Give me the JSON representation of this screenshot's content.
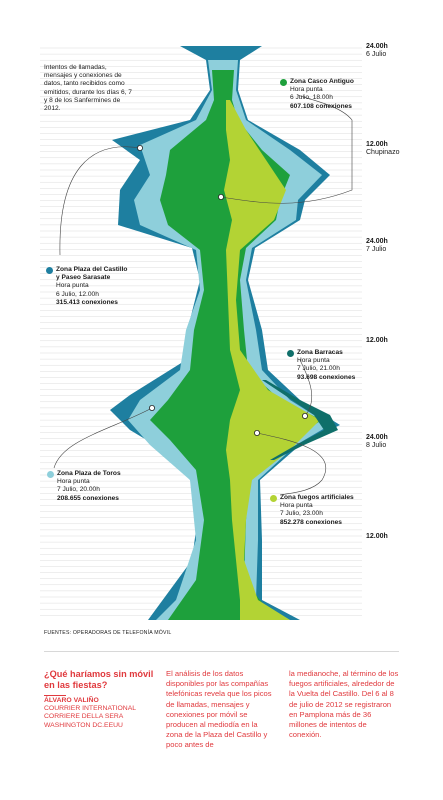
{
  "chart_data": {
    "type": "area",
    "title": "",
    "xlabel": "",
    "ylabel": "",
    "time_axis": [
      "24.00h",
      "12.00h",
      "24.00h",
      "12.00h",
      "24.00h",
      "12.00h"
    ],
    "time_labels": [
      {
        "time": "24.00h",
        "day": "6 Julio"
      },
      {
        "time": "12.00h",
        "day": "Chupinazo"
      },
      {
        "time": "24.00h",
        "day": "7 Julio"
      },
      {
        "time": "12.00h",
        "day": ""
      },
      {
        "time": "24.00h",
        "day": "8 Julio"
      },
      {
        "time": "12.00h",
        "day": ""
      }
    ],
    "series": [
      {
        "name": "Zona Plaza del Castillo y Paseo Sarasate",
        "color": "#1e7fa0"
      },
      {
        "name": "Zona Plaza de Toros",
        "color": "#8ecfdb"
      },
      {
        "name": "Zona Casco Antiguo",
        "color": "#1ea03c"
      },
      {
        "name": "Zona fuegos artificiales",
        "color": "#b3d334"
      },
      {
        "name": "Zona Barracas",
        "color": "#0f6f6a"
      }
    ]
  },
  "intro": "Intentos de llamadas, mensajes y conexiones de datos, tanto recibidos como emitidos, durante los días 6, 7 y 8 de los Sanfermines de 2012.",
  "zones": {
    "casco": {
      "name": "Zona Casco Antiguo",
      "label": "Hora punta",
      "when": "6 Julio, 18.00h",
      "value": "607.108 conexiones",
      "color": "#1ea03c"
    },
    "castillo": {
      "name_1": "Zona Plaza del Castillo",
      "name_2": "y Paseo Sarasate",
      "label": "Hora punta",
      "when": "6 Julio, 12.00h",
      "value": "315.413 conexiones",
      "color": "#1e7fa0"
    },
    "barracas": {
      "name": "Zona Barracas",
      "label": "Hora punta",
      "when": "7 Julio, 21.00h",
      "value": "93.698 conexiones",
      "color": "#0f6f6a"
    },
    "toros": {
      "name": "Zona Plaza de Toros",
      "label": "Hora punta",
      "when": "7 Julio, 20.00h",
      "value": "208.655 conexiones",
      "color": "#8ecfdb"
    },
    "fuegos": {
      "name": "Zona fuegos artificiales",
      "label": "Hora punta",
      "when": "7 Julio, 23.00h",
      "value": "852.278 conexiones",
      "color": "#b3d334"
    }
  },
  "source": "FUENTES: OPERADORAS DE TELEFONÍA MÓVIL",
  "article": {
    "title": "¿Qué haríamos sin móvil en las fiestas?",
    "author": "ÁLVARO VALIÑO",
    "affiliation_1": "COURRIER INTERNATIONAL",
    "affiliation_2": "CORRIERE DELLA SERA",
    "affiliation_3": "WASHINGTON DC.EEUU",
    "col1": "El análisis de los datos disponibles por las compañías telefónicas revela que los picos de llamadas, mensajes y conexiones por móvil se producen al mediodía en la zona de la Plaza del Castillo y poco antes de",
    "col2": "la medianoche, al término de los fuegos artificiales, alrededor de la Vuelta del Castillo. Del 6 al 8 de julio de 2012 se registraron en Pamplona más de 36 millones de intentos de conexión."
  }
}
